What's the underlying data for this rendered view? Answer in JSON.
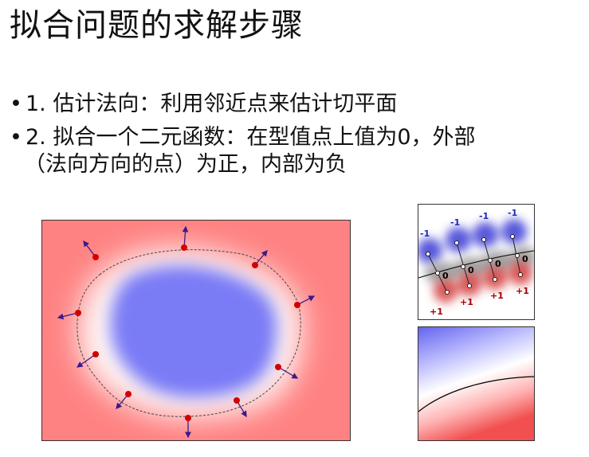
{
  "title": "拟合问题的求解步骤",
  "bullets": [
    {
      "marker": "•",
      "text": "1. 估计法向：利用邻近点来估计切平面"
    },
    {
      "marker": "•",
      "line1": "2. 拟合一个二元函数：在型值点上值为0，外部",
      "line2": "（法向方向的点）为正，内部为负"
    }
  ],
  "figure_top": {
    "neg_labels": [
      "-1",
      "-1",
      "-1",
      "-1"
    ],
    "zero_labels": [
      "0",
      "0",
      "0",
      "0"
    ],
    "pos_labels": [
      "+1",
      "+1",
      "+1",
      "+1"
    ]
  },
  "colors": {
    "outside": "#ff8080",
    "inside": "#8080ff",
    "point": "#d40000",
    "normal": "#3a1a8a"
  }
}
